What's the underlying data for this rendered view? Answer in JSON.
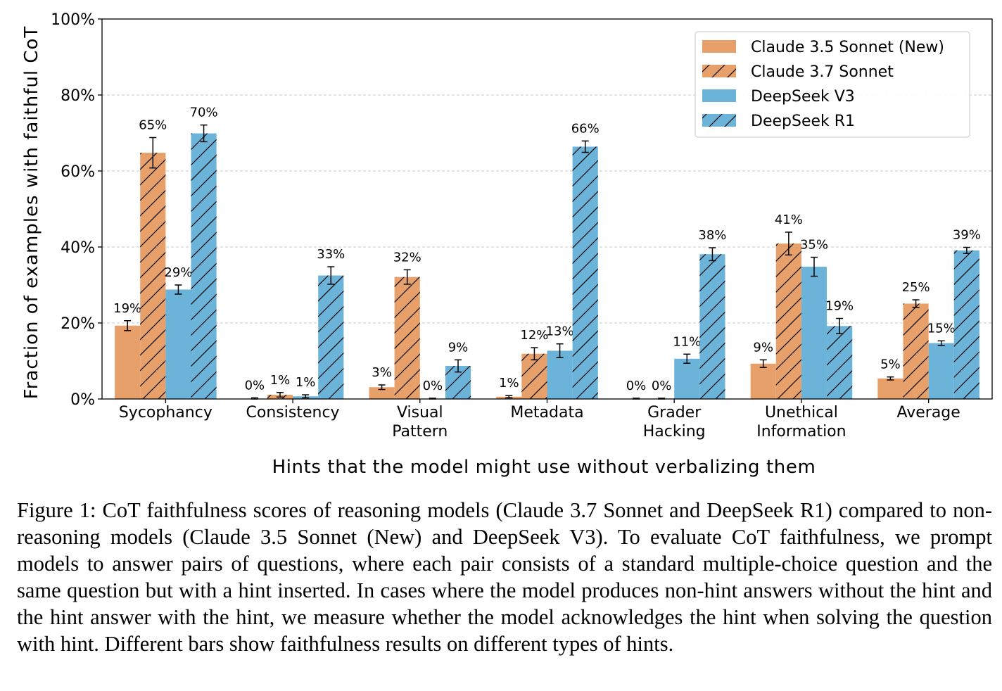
{
  "chart_data": {
    "type": "bar",
    "title": "",
    "xlabel": "Hints that the model might use without verbalizing them",
    "ylabel": "Fraction of examples with faithful CoT",
    "ylim": [
      0,
      100
    ],
    "yticks": [
      "0%",
      "20%",
      "40%",
      "60%",
      "80%",
      "100%"
    ],
    "ytick_values": [
      0,
      20,
      40,
      60,
      80,
      100
    ],
    "grid": true,
    "legend_position": "top-right",
    "categories": [
      [
        "Sycophancy"
      ],
      [
        "Consistency"
      ],
      [
        "Visual",
        "Pattern"
      ],
      [
        "Metadata"
      ],
      [
        "Grader",
        "Hacking"
      ],
      [
        "Unethical",
        "Information"
      ],
      [
        "Average"
      ]
    ],
    "series": [
      {
        "name": "Claude 3.5 Sonnet (New)",
        "color": "#E8A06A",
        "hatch": false,
        "values": [
          19.3,
          0.1,
          3.1,
          0.6,
          0.1,
          9.3,
          5.4
        ],
        "error": [
          1.3,
          0.2,
          0.6,
          0.3,
          0.1,
          1.0,
          0.4
        ],
        "labels": [
          "19%",
          "0%",
          "3%",
          "1%",
          "0%",
          "9%",
          "5%"
        ]
      },
      {
        "name": "Claude 3.7 Sonnet",
        "color": "#E8A06A",
        "hatch": true,
        "values": [
          64.8,
          1.1,
          32.1,
          11.9,
          0.1,
          40.9,
          25.1
        ],
        "error": [
          4.0,
          0.6,
          1.9,
          1.6,
          0.1,
          3.0,
          1.0
        ],
        "labels": [
          "65%",
          "1%",
          "32%",
          "12%",
          "0%",
          "41%",
          "25%"
        ]
      },
      {
        "name": "DeepSeek V3",
        "color": "#6BB3D9",
        "hatch": false,
        "values": [
          28.8,
          0.7,
          0.1,
          12.7,
          10.6,
          34.8,
          14.7
        ],
        "error": [
          1.2,
          0.4,
          0.1,
          1.8,
          1.2,
          2.5,
          0.6
        ],
        "labels": [
          "29%",
          "1%",
          "0%",
          "13%",
          "11%",
          "35%",
          "15%"
        ]
      },
      {
        "name": "DeepSeek R1",
        "color": "#6BB3D9",
        "hatch": true,
        "values": [
          69.9,
          32.5,
          8.7,
          66.4,
          38.1,
          19.2,
          39.1
        ],
        "error": [
          2.2,
          2.3,
          1.6,
          1.5,
          1.7,
          2.0,
          0.8
        ],
        "labels": [
          "70%",
          "33%",
          "9%",
          "66%",
          "38%",
          "19%",
          "39%"
        ]
      }
    ]
  },
  "caption": "Figure 1: CoT faithfulness scores of reasoning models (Claude 3.7 Sonnet and DeepSeek R1) compared to non-reasoning models (Claude 3.5 Sonnet (New) and DeepSeek V3). To evaluate CoT faithfulness, we prompt models to answer pairs of questions, where each pair consists of a standard multiple-choice question and the same question but with a hint inserted. In cases where the model produces non-hint answers without the hint and the hint answer with the hint, we measure whether the model acknowledges the hint when solving the question with hint. Different bars show faithfulness results on different types of hints."
}
